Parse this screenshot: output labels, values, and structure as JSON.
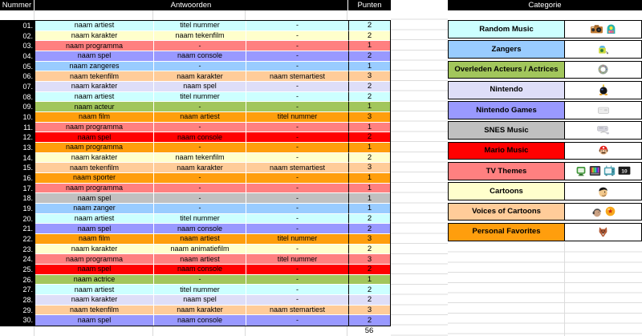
{
  "left_table": {
    "header": {
      "nummer": "Nummer",
      "antwoorden": "Antwoorden",
      "punten": "Punten"
    },
    "rows": [
      {
        "num": "01.",
        "a1": "naam artiest",
        "a2": "titel nummer",
        "a3": "-",
        "pt": "2",
        "color": "cyan"
      },
      {
        "num": "02.",
        "a1": "naam karakter",
        "a2": "naam tekenfilm",
        "a3": "-",
        "pt": "2",
        "color": "yellow"
      },
      {
        "num": "03.",
        "a1": "naam programma",
        "a2": "-",
        "a3": "-",
        "pt": "1",
        "color": "salmon"
      },
      {
        "num": "04.",
        "a1": "naam spel",
        "a2": "naam console",
        "a3": "-",
        "pt": "2",
        "color": "purple"
      },
      {
        "num": "05.",
        "a1": "naam zangeres",
        "a2": "-",
        "a3": "-",
        "pt": "1",
        "color": "blue"
      },
      {
        "num": "06.",
        "a1": "naam tekenfilm",
        "a2": "naam karakter",
        "a3": "naam stemartiest",
        "pt": "3",
        "color": "tan"
      },
      {
        "num": "07.",
        "a1": "naam karakter",
        "a2": "naam spel",
        "a3": "-",
        "pt": "2",
        "color": "lavender"
      },
      {
        "num": "08.",
        "a1": "naam artiest",
        "a2": "titel nummer",
        "a3": "-",
        "pt": "2",
        "color": "cyan"
      },
      {
        "num": "09.",
        "a1": "naam acteur",
        "a2": "-",
        "a3": "-",
        "pt": "1",
        "color": "green"
      },
      {
        "num": "10.",
        "a1": "naam film",
        "a2": "naam artiest",
        "a3": "titel nummer",
        "pt": "3",
        "color": "orange"
      },
      {
        "num": "11.",
        "a1": "naam programma",
        "a2": "-",
        "a3": "-",
        "pt": "1",
        "color": "salmon"
      },
      {
        "num": "12.",
        "a1": "naam spel",
        "a2": "naam console",
        "a3": "-",
        "pt": "2",
        "color": "red"
      },
      {
        "num": "13.",
        "a1": "naam programma",
        "a2": "-",
        "a3": "-",
        "pt": "1",
        "color": "orange"
      },
      {
        "num": "14.",
        "a1": "naam karakter",
        "a2": "naam tekenfilm",
        "a3": "-",
        "pt": "2",
        "color": "yellow"
      },
      {
        "num": "15.",
        "a1": "naam tekenfilm",
        "a2": "naam karakter",
        "a3": "naam stemartiest",
        "pt": "3",
        "color": "tan"
      },
      {
        "num": "16.",
        "a1": "naam sporter",
        "a2": "-",
        "a3": "-",
        "pt": "1",
        "color": "orange"
      },
      {
        "num": "17.",
        "a1": "naam programma",
        "a2": "-",
        "a3": "-",
        "pt": "1",
        "color": "salmon"
      },
      {
        "num": "18.",
        "a1": "naam spel",
        "a2": "-",
        "a3": "-",
        "pt": "1",
        "color": "gray"
      },
      {
        "num": "19.",
        "a1": "naam zanger",
        "a2": "-",
        "a3": "-",
        "pt": "1",
        "color": "blue"
      },
      {
        "num": "20.",
        "a1": "naam artiest",
        "a2": "titel nummer",
        "a3": "-",
        "pt": "2",
        "color": "cyan"
      },
      {
        "num": "21.",
        "a1": "naam spel",
        "a2": "naam console",
        "a3": "-",
        "pt": "2",
        "color": "purple"
      },
      {
        "num": "22.",
        "a1": "naam film",
        "a2": "naam artiest",
        "a3": "titel nummer",
        "pt": "3",
        "color": "orange"
      },
      {
        "num": "23.",
        "a1": "naam karakter",
        "a2": "naam animatiefilm",
        "a3": "-",
        "pt": "2",
        "color": "yellow"
      },
      {
        "num": "24.",
        "a1": "naam programma",
        "a2": "naam artiest",
        "a3": "titel nummer",
        "pt": "3",
        "color": "salmon"
      },
      {
        "num": "25.",
        "a1": "naam spel",
        "a2": "naam console",
        "a3": "-",
        "pt": "2",
        "color": "red"
      },
      {
        "num": "26.",
        "a1": "naam actrice",
        "a2": "-",
        "a3": "-",
        "pt": "1",
        "color": "green"
      },
      {
        "num": "27.",
        "a1": "naam artiest",
        "a2": "titel nummer",
        "a3": "-",
        "pt": "2",
        "color": "cyan"
      },
      {
        "num": "28.",
        "a1": "naam karakter",
        "a2": "naam spel",
        "a3": "-",
        "pt": "2",
        "color": "lavender"
      },
      {
        "num": "29.",
        "a1": "naam tekenfilm",
        "a2": "naam karakter",
        "a3": "naam stemartiest",
        "pt": "3",
        "color": "tan"
      },
      {
        "num": "30.",
        "a1": "naam spel",
        "a2": "naam console",
        "a3": "-",
        "pt": "2",
        "color": "purple"
      }
    ],
    "total_points": "56"
  },
  "categories": {
    "header": "Categorie",
    "tv_channel_label": "10",
    "items": [
      {
        "label": "Random Music",
        "color": "cyan",
        "icons": [
          "boombox-icon",
          "jukebox-icon"
        ]
      },
      {
        "label": "Zangers",
        "color": "blue",
        "icons": [
          "karaoke-machine-icon"
        ]
      },
      {
        "label": "Overleden Acteurs / Actrices",
        "color": "green",
        "icons": [
          "wreath-icon"
        ]
      },
      {
        "label": "Nintendo",
        "color": "lavender",
        "icons": [
          "bob-omb-icon"
        ]
      },
      {
        "label": "Nintendo Games",
        "color": "purple",
        "icons": [
          "game-console-icon"
        ]
      },
      {
        "label": "SNES Music",
        "color": "gray",
        "icons": [
          "snes-console-icon"
        ]
      },
      {
        "label": "Mario Music",
        "color": "red",
        "icons": [
          "mario-icon"
        ]
      },
      {
        "label": "TV Themes",
        "color": "salmon",
        "icons": [
          "tv-green-icon",
          "tv-testpattern-icon",
          "tv-teal-icon",
          "tv-channel10-icon"
        ]
      },
      {
        "label": "Cartoons",
        "color": "yellow",
        "icons": [
          "flintstone-icon"
        ]
      },
      {
        "label": "Voices of Cartoons",
        "color": "tan",
        "icons": [
          "voice-actor-icon",
          "dragonball-icon"
        ]
      },
      {
        "label": "Personal Favorites",
        "color": "orange",
        "icons": [
          "fox-icon"
        ]
      }
    ]
  },
  "colors": {
    "cyan": "#CCFFFF",
    "yellow": "#FFFFCC",
    "salmon": "#FF8080",
    "purple": "#9999FF",
    "blue": "#99CCFF",
    "tan": "#FFCC99",
    "lavender": "#DEDEF8",
    "green": "#A2C65C",
    "orange": "#FF9E0D",
    "red": "#FF0000",
    "gray": "#C0C0C0",
    "header_bg": "#000000",
    "header_text": "#FFFFFF",
    "gridline": "#DCDCDC"
  }
}
